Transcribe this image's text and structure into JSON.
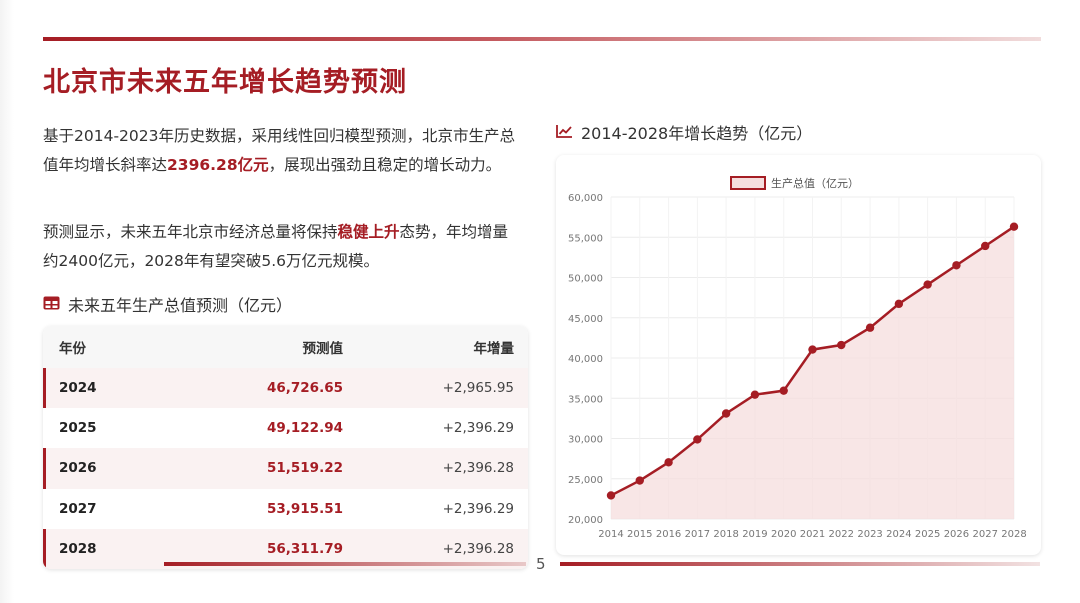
{
  "page": {
    "title": "北京市未来五年增长趋势预测",
    "page_number": "5"
  },
  "intro": {
    "p1_a": "基于2014-2023年历史数据，采用线性回归模型预测，北京市生产总值年均增长斜率达",
    "p1_hl": "2396.28亿元",
    "p1_b": "，展现出强劲且稳定的增长动力。",
    "p2_a": "预测显示，未来五年北京市经济总量将保持",
    "p2_hl": "稳健上升",
    "p2_b": "态势，年均增量约2400亿元，2028年有望突破5.6万亿元规模。"
  },
  "table": {
    "heading": "未来五年生产总值预测（亿元）",
    "icon": "table-icon",
    "columns": [
      "年份",
      "预测值",
      "年增量"
    ],
    "rows": [
      {
        "year": "2024",
        "value": "46,726.65",
        "delta": "+2,965.95",
        "shaded": true
      },
      {
        "year": "2025",
        "value": "49,122.94",
        "delta": "+2,396.29",
        "shaded": false
      },
      {
        "year": "2026",
        "value": "51,519.22",
        "delta": "+2,396.28",
        "shaded": true
      },
      {
        "year": "2027",
        "value": "53,915.51",
        "delta": "+2,396.29",
        "shaded": false
      },
      {
        "year": "2028",
        "value": "56,311.79",
        "delta": "+2,396.28",
        "shaded": true
      }
    ]
  },
  "chart_heading": {
    "text": "2014-2028年增长趋势（亿元）",
    "icon": "line-chart-icon"
  },
  "colors": {
    "accent": "#a51d24",
    "fill": "#f5dede"
  },
  "chart_data": {
    "type": "area",
    "title": "",
    "xlabel": "",
    "ylabel": "",
    "legend_position": "top-center",
    "grid": true,
    "x": [
      "2014",
      "2015",
      "2016",
      "2017",
      "2018",
      "2019",
      "2020",
      "2021",
      "2022",
      "2023",
      "2024",
      "2025",
      "2026",
      "2027",
      "2028"
    ],
    "series": [
      {
        "name": "生产总值（亿元）",
        "values": [
          22926,
          24779,
          27041,
          29883,
          33106,
          35445,
          35943,
          41046,
          41611,
          43761,
          46726.65,
          49122.94,
          51519.22,
          53915.51,
          56311.79
        ]
      }
    ],
    "ylim": [
      20000,
      60000
    ],
    "yticks": [
      "20,000",
      "25,000",
      "30,000",
      "35,000",
      "40,000",
      "45,000",
      "50,000",
      "55,000",
      "60,000"
    ],
    "ytick_values": [
      20000,
      25000,
      30000,
      35000,
      40000,
      45000,
      50000,
      55000,
      60000
    ]
  }
}
